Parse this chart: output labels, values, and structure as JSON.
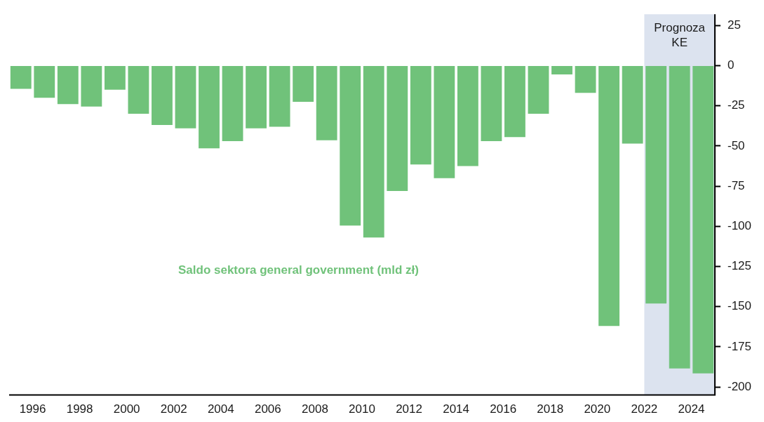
{
  "chart_data": {
    "type": "bar",
    "x": [
      1995.5,
      1996.5,
      1997.5,
      1998.5,
      1999.5,
      2000.5,
      2001.5,
      2002.5,
      2003.5,
      2004.5,
      2005.5,
      2006.5,
      2007.5,
      2008.5,
      2009.5,
      2010.5,
      2011.5,
      2012.5,
      2013.5,
      2014.5,
      2015.5,
      2016.5,
      2017.5,
      2018.5,
      2019.5,
      2020.5,
      2021.5,
      2022.5,
      2023.5,
      2024.5
    ],
    "series": [
      {
        "name": "Saldo sektora general government (mld zł)",
        "color": "#70c27a",
        "values": [
          -14.5,
          -20,
          -24,
          -25.5,
          -15,
          -30,
          -37,
          -39,
          -51.5,
          -47,
          -39,
          -38,
          -22.5,
          -46.5,
          -99.5,
          -107,
          -78,
          -61.5,
          -70,
          -62.5,
          -47,
          -44.5,
          -30,
          -5.5,
          -17,
          -162,
          -48.5,
          -148,
          -188.5,
          -191.5
        ]
      }
    ],
    "xlim": [
      1995,
      2025
    ],
    "xticks": [
      1996,
      1998,
      2000,
      2002,
      2004,
      2006,
      2008,
      2010,
      2012,
      2014,
      2016,
      2018,
      2020,
      2022,
      2024
    ],
    "ylim": [
      -205,
      32
    ],
    "yticks": [
      25,
      0,
      -25,
      -50,
      -75,
      -100,
      -125,
      -150,
      -175,
      -200
    ],
    "bands": [
      {
        "axis": "x",
        "from": 2022,
        "to": 2025,
        "label": "Prognoza KE",
        "color": "#dce3ef"
      }
    ],
    "grid": false,
    "legend": false
  }
}
